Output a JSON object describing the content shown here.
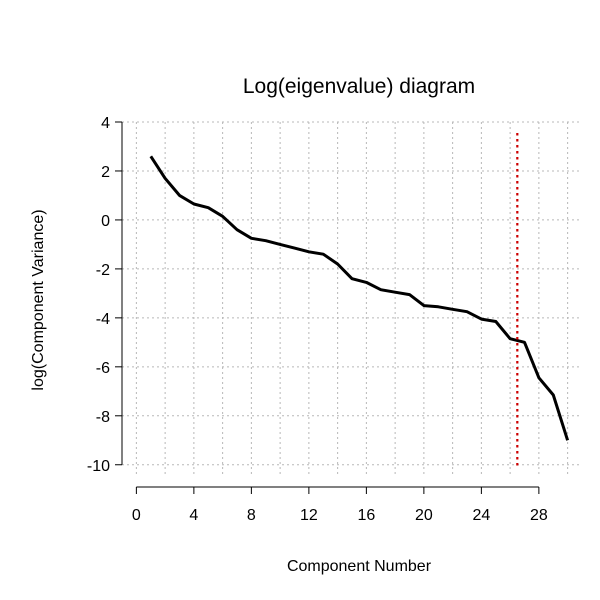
{
  "chart_data": {
    "type": "line",
    "title": "Log(eigenvalue) diagram",
    "xlabel": "Component Number",
    "ylabel": "log(Component Variance)",
    "xlim": [
      -1,
      31
    ],
    "ylim": [
      -10.5,
      4
    ],
    "xticks": [
      0,
      4,
      8,
      12,
      16,
      20,
      24,
      28
    ],
    "xtick_labels": [
      "0",
      "4",
      "8",
      "12",
      "16",
      "20",
      "24",
      "28"
    ],
    "yticks": [
      -10,
      -8,
      -6,
      -4,
      -2,
      0,
      2,
      4
    ],
    "ytick_labels": [
      "-10",
      "-8",
      "-6",
      "-4",
      "-2",
      "0",
      "2",
      "4"
    ],
    "grid_x": [
      0,
      2,
      4,
      6,
      8,
      10,
      12,
      14,
      16,
      18,
      20,
      22,
      24,
      26,
      28,
      30
    ],
    "grid_y": [
      -10,
      -8,
      -6,
      -4,
      -2,
      0,
      2,
      4
    ],
    "grid": true,
    "grid_style": "dotted",
    "series": [
      {
        "x": [
          1,
          2,
          3,
          4,
          5,
          6,
          7,
          8,
          9,
          10,
          11,
          12,
          13,
          14,
          15,
          16,
          17,
          18,
          19,
          20,
          21,
          22,
          23,
          24,
          25,
          26,
          27,
          28,
          29,
          30
        ],
        "values": [
          2.6,
          1.7,
          1.0,
          0.65,
          0.5,
          0.15,
          -0.4,
          -0.75,
          -0.85,
          -1.0,
          -1.15,
          -1.3,
          -1.4,
          -1.8,
          -2.4,
          -2.55,
          -2.85,
          -2.95,
          -3.05,
          -3.5,
          -3.55,
          -3.65,
          -3.75,
          -4.05,
          -4.15,
          -4.85,
          -5.0,
          -6.45,
          -7.15,
          -9.0
        ],
        "color": "#000000"
      }
    ],
    "vertical_line": {
      "x": 26.5,
      "color": "#cc0000",
      "style": "dotted"
    }
  }
}
